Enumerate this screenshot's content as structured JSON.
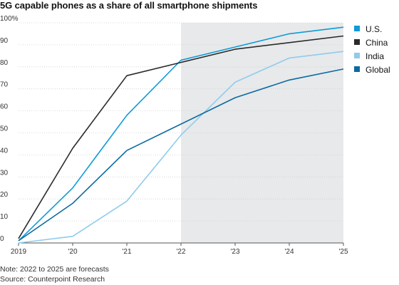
{
  "chart_data": {
    "type": "line",
    "title": "5G capable phones as a share of all smartphone shipments",
    "x": [
      2019,
      2020,
      2021,
      2022,
      2023,
      2024,
      2025
    ],
    "x_tick_labels": [
      "2019",
      "'20",
      "'21",
      "'22",
      "'23",
      "'24",
      "'25"
    ],
    "y_tick_labels": [
      "100%",
      "90",
      "80",
      "70",
      "60",
      "50",
      "40",
      "30",
      "20",
      "10",
      "0"
    ],
    "ylim": [
      0,
      100
    ],
    "forecast_shading": {
      "from": 2022,
      "to": 2025,
      "color": "#e8e9eb"
    },
    "series": [
      {
        "name": "U.S.",
        "color": "#0e9bd6",
        "values": [
          1,
          25,
          58,
          83,
          89,
          95,
          98
        ]
      },
      {
        "name": "China",
        "color": "#2b2b2b",
        "values": [
          2,
          43,
          76,
          82,
          88,
          91,
          94
        ]
      },
      {
        "name": "India",
        "color": "#8fcbec",
        "values": [
          0,
          3,
          19,
          49,
          73,
          84,
          87
        ]
      },
      {
        "name": "Global",
        "color": "#0b6aa0",
        "values": [
          1,
          18,
          42,
          54,
          66,
          74,
          79
        ]
      }
    ],
    "legend_position": "top-right",
    "note": "Note: 2022 to 2025 are forecasts",
    "source": "Source: Counterpoint Research"
  }
}
